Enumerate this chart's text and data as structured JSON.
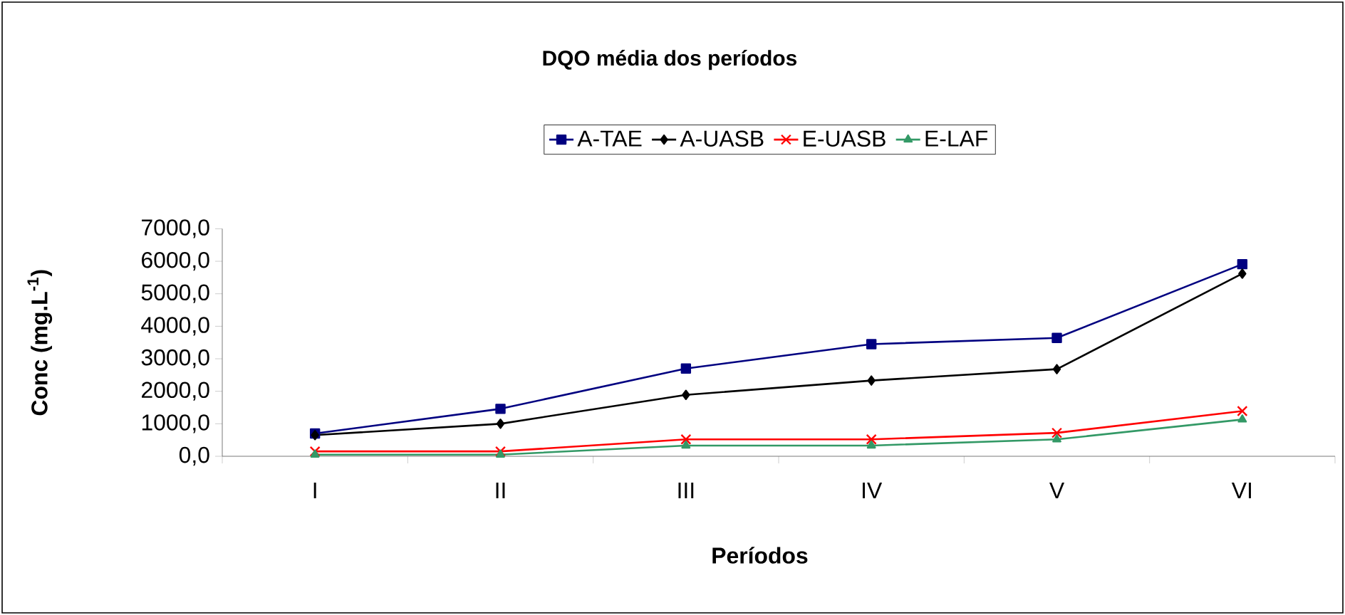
{
  "chart_data": {
    "type": "line",
    "title": "DQO média dos períodos",
    "xlabel": "Períodos",
    "ylabel": "Conc (mg.L$^{-1}$)",
    "categories": [
      "I",
      "II",
      "III",
      "IV",
      "V",
      "VI"
    ],
    "ylim": [
      0,
      7000
    ],
    "yticks": [
      {
        "value": 0,
        "label": "0,0"
      },
      {
        "value": 1000,
        "label": "1000,0"
      },
      {
        "value": 2000,
        "label": "2000,0"
      },
      {
        "value": 3000,
        "label": "3000,0"
      },
      {
        "value": 4000,
        "label": "4000,0"
      },
      {
        "value": 5000,
        "label": "5000,0"
      },
      {
        "value": 6000,
        "label": "6000,0"
      },
      {
        "value": 7000,
        "label": "7000,0"
      }
    ],
    "series": [
      {
        "name": "A-TAE",
        "color": "#000080",
        "marker": "square",
        "values": [
          700,
          1460,
          2700,
          3450,
          3640,
          5910
        ]
      },
      {
        "name": "A-UASB",
        "color": "#000000",
        "marker": "diamond",
        "values": [
          650,
          1000,
          1890,
          2330,
          2680,
          5620
        ]
      },
      {
        "name": "E-UASB",
        "color": "#ff0000",
        "marker": "cross",
        "values": [
          150,
          150,
          520,
          520,
          720,
          1390
        ]
      },
      {
        "name": "E-LAF",
        "color": "#339966",
        "marker": "triangle",
        "values": [
          50,
          50,
          330,
          330,
          520,
          1130
        ]
      }
    ],
    "grid": false,
    "legend": "top",
    "line_style": "solid"
  }
}
